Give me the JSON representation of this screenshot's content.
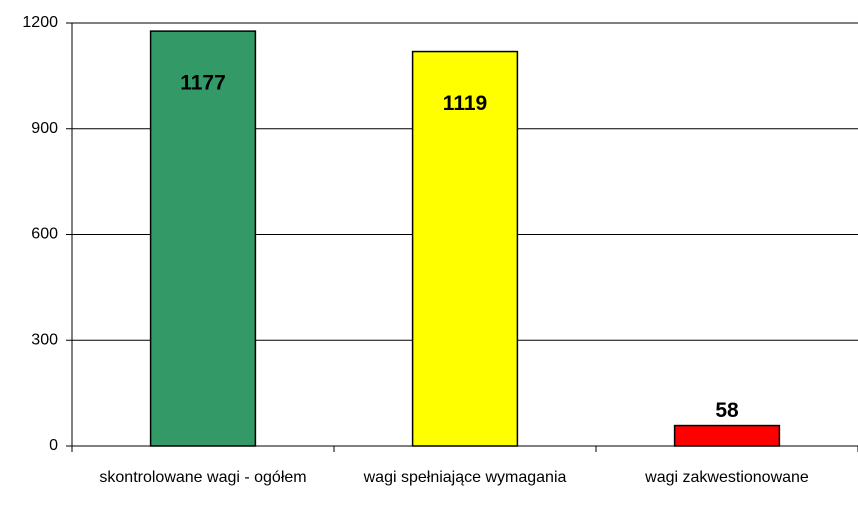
{
  "chart_data": {
    "type": "bar",
    "categories": [
      "skontrolowane wagi - ogółem",
      "wagi spełniające wymagania",
      "wagi zakwestionowane"
    ],
    "values": [
      1177,
      1119,
      58
    ],
    "colors": [
      "#339966",
      "#ffff00",
      "#ff0000"
    ],
    "ylim": [
      0,
      1200
    ],
    "yticks": [
      0,
      300,
      600,
      900,
      1200
    ],
    "grid": true
  }
}
